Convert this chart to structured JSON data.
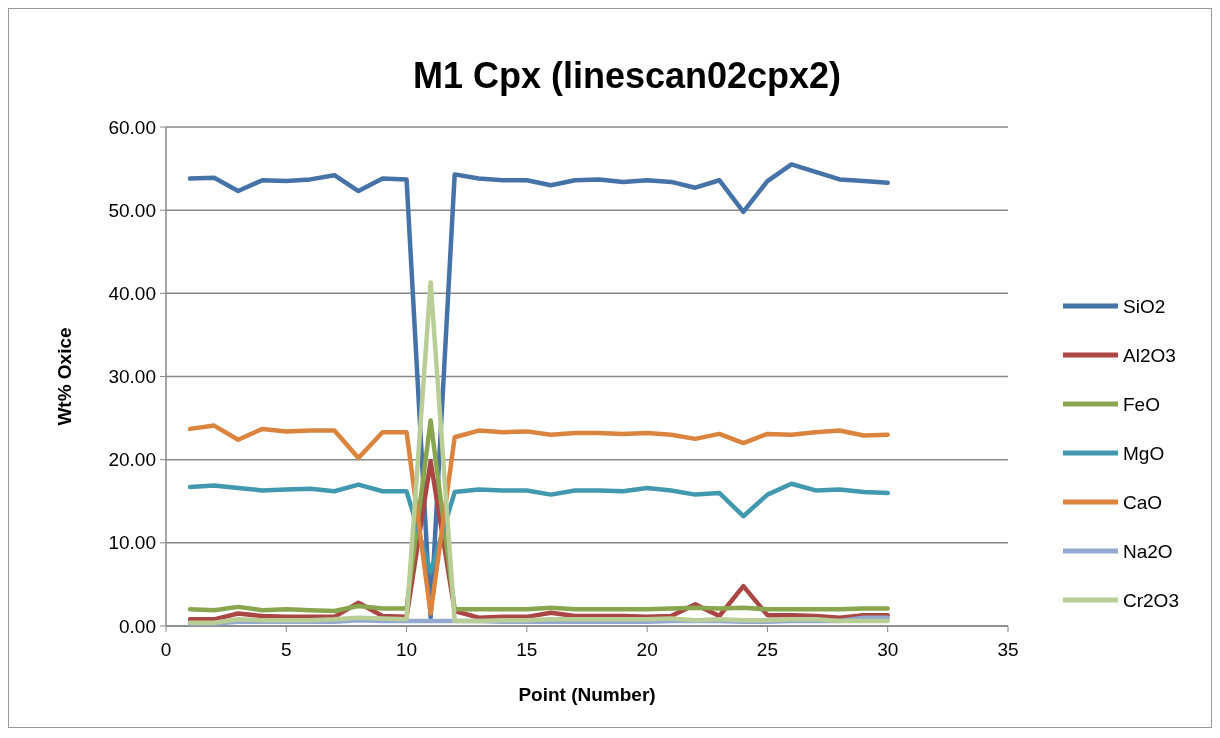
{
  "chart_data": {
    "type": "line",
    "title": "M1 Cpx (linescan02cpx2)",
    "xlabel": "Point (Number)",
    "ylabel": "Wt% Oxice",
    "x": [
      1,
      2,
      3,
      4,
      5,
      6,
      7,
      8,
      9,
      10,
      11,
      12,
      13,
      14,
      15,
      16,
      17,
      18,
      19,
      20,
      21,
      22,
      23,
      24,
      25,
      26,
      27,
      28,
      29,
      30
    ],
    "xlim": [
      0,
      35
    ],
    "xticks": [
      0,
      5,
      10,
      15,
      20,
      25,
      30,
      35
    ],
    "ylim": [
      0,
      60
    ],
    "yticks": [
      {
        "value": 0,
        "label": "0.00"
      },
      {
        "value": 10,
        "label": "10.00"
      },
      {
        "value": 20,
        "label": "20.00"
      },
      {
        "value": 30,
        "label": "30.00"
      },
      {
        "value": 40,
        "label": "40.00"
      },
      {
        "value": 50,
        "label": "50.00"
      },
      {
        "value": 60,
        "label": "60.00"
      }
    ],
    "grid": "y",
    "legend": "right",
    "marker": "none",
    "line_style": "solid",
    "series": [
      {
        "name": "SiO2",
        "color": "#4572a7",
        "values": [
          53.8,
          53.9,
          52.3,
          53.6,
          53.5,
          53.7,
          54.2,
          52.3,
          53.8,
          53.7,
          1.0,
          54.3,
          53.8,
          53.6,
          53.6,
          53.0,
          53.6,
          53.7,
          53.4,
          53.6,
          53.4,
          52.7,
          53.6,
          49.8,
          53.5,
          55.5,
          54.6,
          53.7,
          53.5,
          53.3
        ]
      },
      {
        "name": "Al2O3",
        "color": "#aa4643",
        "values": [
          0.8,
          0.8,
          1.5,
          1.2,
          1.1,
          1.1,
          1.1,
          2.8,
          1.2,
          1.1,
          19.8,
          1.8,
          1.0,
          1.1,
          1.1,
          1.6,
          1.2,
          1.2,
          1.2,
          1.1,
          1.2,
          2.6,
          1.2,
          4.8,
          1.3,
          1.3,
          1.2,
          1.0,
          1.3,
          1.3
        ]
      },
      {
        "name": "FeO",
        "color": "#89a54e",
        "values": [
          2.0,
          1.9,
          2.3,
          1.9,
          2.0,
          1.9,
          1.8,
          2.4,
          2.1,
          2.1,
          24.7,
          2.0,
          2.0,
          2.0,
          2.0,
          2.2,
          2.0,
          2.0,
          2.0,
          2.0,
          2.1,
          2.2,
          2.1,
          2.2,
          2.0,
          2.0,
          2.0,
          2.0,
          2.1,
          2.1
        ]
      },
      {
        "name": "MgO",
        "color": "#4198af",
        "values": [
          16.7,
          16.9,
          16.6,
          16.3,
          16.4,
          16.5,
          16.2,
          17.0,
          16.2,
          16.2,
          6.5,
          16.1,
          16.4,
          16.3,
          16.3,
          15.8,
          16.3,
          16.3,
          16.2,
          16.6,
          16.3,
          15.8,
          16.0,
          13.2,
          15.8,
          17.1,
          16.3,
          16.4,
          16.1,
          16.0
        ]
      },
      {
        "name": "CaO",
        "color": "#db843d",
        "values": [
          23.7,
          24.1,
          22.4,
          23.7,
          23.4,
          23.5,
          23.5,
          20.2,
          23.3,
          23.3,
          1.5,
          22.7,
          23.5,
          23.3,
          23.4,
          23.0,
          23.2,
          23.2,
          23.1,
          23.2,
          23.0,
          22.5,
          23.1,
          22.0,
          23.1,
          23.0,
          23.3,
          23.5,
          22.9,
          23.0
        ]
      },
      {
        "name": "Na2O",
        "color": "#93a9cf",
        "values": [
          0.3,
          0.3,
          0.5,
          0.5,
          0.5,
          0.5,
          0.5,
          0.7,
          0.6,
          0.6,
          0.6,
          0.6,
          0.6,
          0.5,
          0.5,
          0.5,
          0.5,
          0.5,
          0.5,
          0.5,
          0.6,
          0.6,
          0.6,
          0.5,
          0.5,
          0.6,
          0.6,
          0.6,
          1.0,
          1.0
        ]
      },
      {
        "name": "Cr2O3",
        "color": "#b9cd96",
        "values": [
          0.4,
          0.4,
          0.8,
          0.7,
          0.7,
          0.7,
          0.8,
          1.0,
          0.9,
          0.8,
          41.3,
          0.6,
          0.6,
          0.7,
          0.7,
          0.8,
          0.8,
          0.8,
          0.8,
          0.8,
          0.9,
          0.7,
          0.8,
          0.7,
          0.7,
          0.8,
          0.8,
          0.6,
          0.6,
          0.6
        ]
      }
    ]
  }
}
